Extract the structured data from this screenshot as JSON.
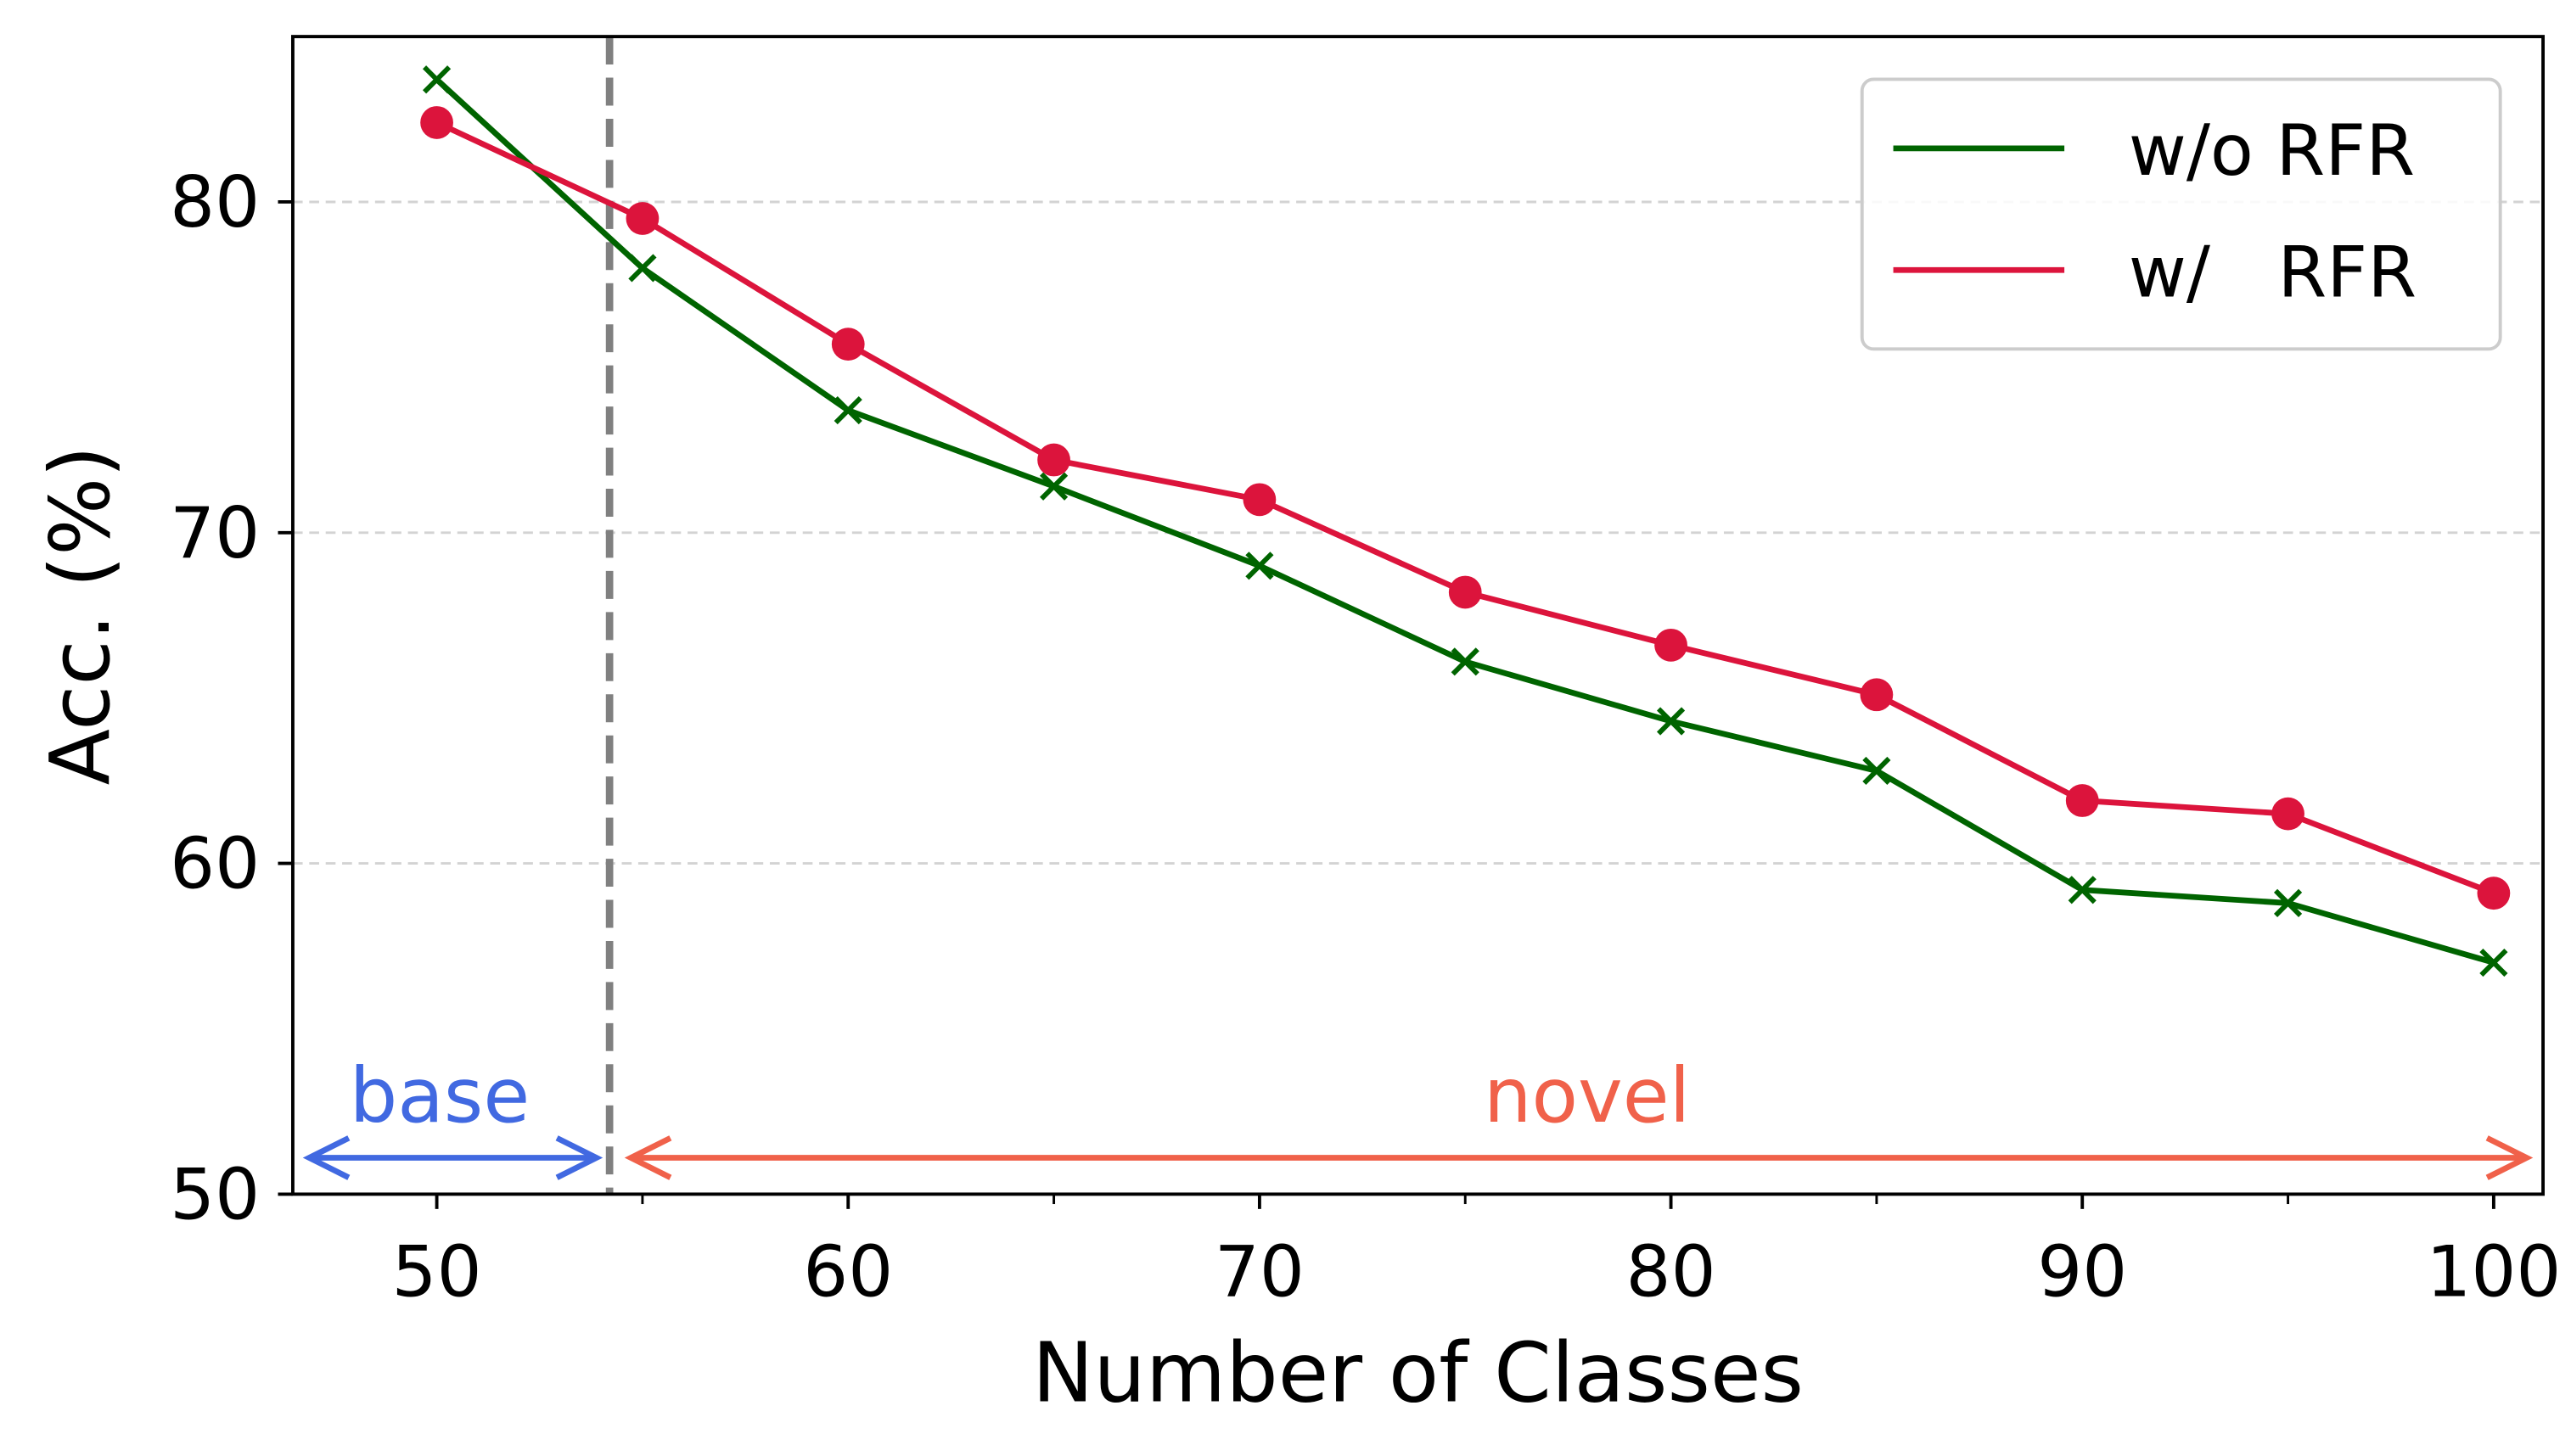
{
  "chart_data": {
    "type": "line",
    "title": "",
    "xlabel": "Number of Classes",
    "ylabel": "Acc. (%)",
    "xlim": [
      46.5,
      101.2
    ],
    "ylim": [
      50,
      85
    ],
    "x_ticks": [
      50,
      60,
      70,
      80,
      90,
      100
    ],
    "x_minor_ticks": [
      55,
      65,
      75,
      85,
      95
    ],
    "y_ticks": [
      50,
      60,
      70,
      80
    ],
    "y_grid": true,
    "legend_position": "top-right",
    "x": [
      50,
      55,
      60,
      65,
      70,
      75,
      80,
      85,
      90,
      95,
      100
    ],
    "series": [
      {
        "name": "w/o RFR",
        "color": "#006400",
        "marker": "x",
        "values": [
          83.7,
          78.0,
          73.7,
          71.4,
          69.0,
          66.1,
          64.3,
          62.8,
          59.2,
          58.8,
          57.0
        ]
      },
      {
        "name": "w/   RFR",
        "color": "#DC143C",
        "marker": "circle",
        "values": [
          82.4,
          79.5,
          75.7,
          72.2,
          71.0,
          68.2,
          66.6,
          65.1,
          61.9,
          61.5,
          59.1
        ]
      }
    ],
    "separator_x": 54.2,
    "annotations": [
      {
        "text": "base",
        "color": "#4169E1",
        "from": 46.5,
        "to": 54.2
      },
      {
        "text": "novel",
        "color": "#F0614A",
        "from": 54.2,
        "to": 101.2
      }
    ]
  }
}
